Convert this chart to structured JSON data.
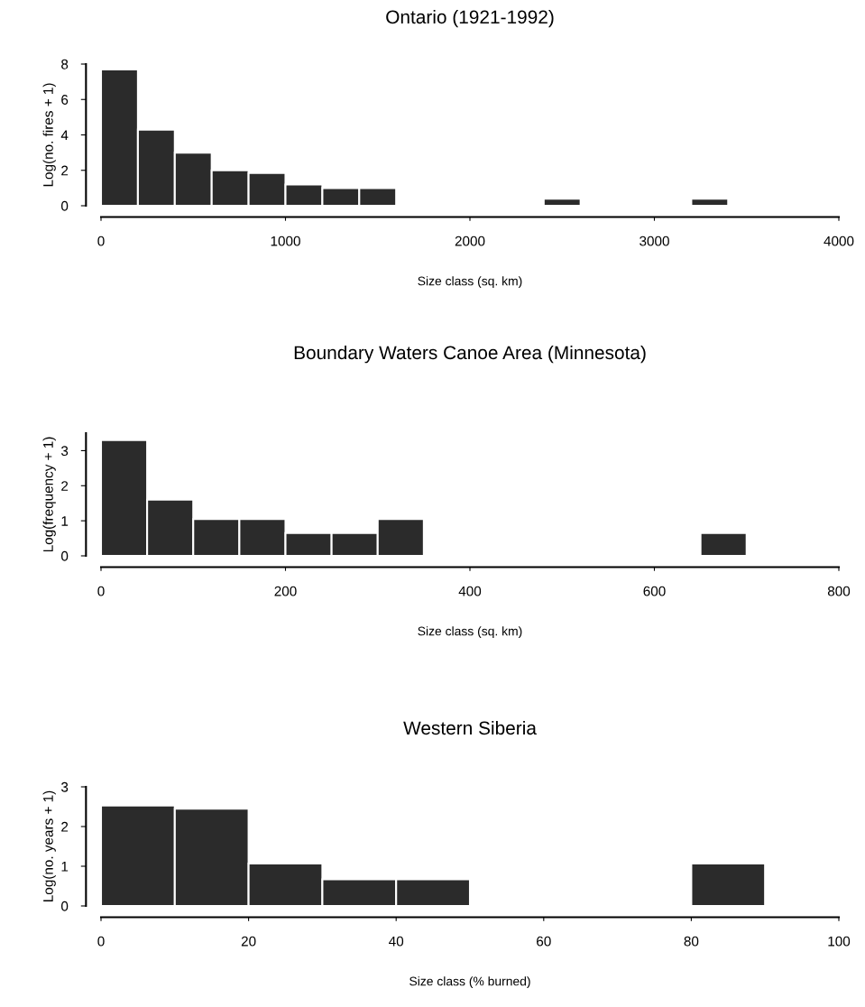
{
  "chart_data": [
    {
      "type": "histogram",
      "title": "Ontario (1921-1992)",
      "xlabel": "Size class (sq. km)",
      "ylabel": "Log(no. fires + 1)",
      "color": "#2b2b2b",
      "bins": [
        0,
        200,
        400,
        600,
        800,
        1000,
        1200,
        1400,
        1600,
        1800,
        2000,
        2200,
        2400,
        2600,
        2800,
        3000,
        3200,
        3400
      ],
      "values": [
        7.7,
        4.3,
        3.0,
        2.0,
        1.85,
        1.2,
        1.0,
        1.0,
        0,
        0,
        0,
        0,
        0.4,
        0,
        0,
        0,
        0.4
      ],
      "xlim": [
        0,
        4000
      ],
      "xticks": [
        0,
        1000,
        2000,
        3000,
        4000
      ],
      "ylim": [
        0,
        8
      ],
      "yticks": [
        0,
        2,
        4,
        6,
        8
      ]
    },
    {
      "type": "histogram",
      "title": "Boundary Waters Canoe Area (Minnesota)",
      "xlabel": "Size class (sq. km)",
      "ylabel": "Log(frequency + 1)",
      "color": "#2b2b2b",
      "bins": [
        0,
        50,
        100,
        150,
        200,
        250,
        300,
        350,
        400,
        450,
        500,
        550,
        600,
        650,
        700
      ],
      "values": [
        3.3,
        1.6,
        1.05,
        1.05,
        0.65,
        0.65,
        1.05,
        0,
        0,
        0,
        0,
        0,
        0,
        0.65
      ],
      "xlim": [
        0,
        800
      ],
      "xticks": [
        0,
        200,
        400,
        600,
        800
      ],
      "ylim": [
        0,
        3.5
      ],
      "yticks": [
        0,
        1,
        2,
        3
      ]
    },
    {
      "type": "histogram",
      "title": "Western Siberia",
      "xlabel": "Size class (% burned)",
      "ylabel": "Log(no. years + 1)",
      "color": "#2b2b2b",
      "bins": [
        0,
        10,
        20,
        30,
        40,
        50,
        60,
        70,
        80,
        90
      ],
      "values": [
        2.53,
        2.45,
        1.07,
        0.67,
        0.67,
        0,
        0,
        0,
        1.07
      ],
      "xlim": [
        0,
        100
      ],
      "xticks": [
        0,
        20,
        40,
        60,
        80,
        100
      ],
      "ylim": [
        0,
        3
      ],
      "yticks": [
        0,
        1,
        2,
        3
      ]
    }
  ]
}
